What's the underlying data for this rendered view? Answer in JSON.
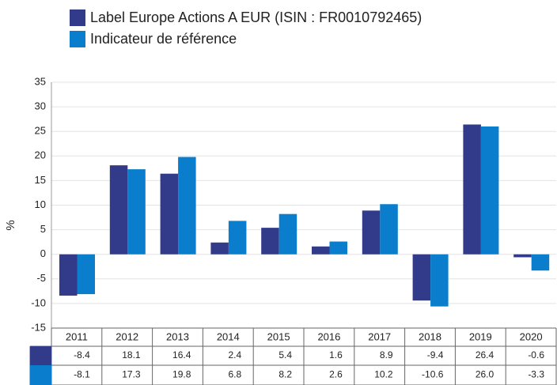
{
  "chart_data": {
    "type": "bar",
    "categories": [
      "2011",
      "2012",
      "2013",
      "2014",
      "2015",
      "2016",
      "2017",
      "2018",
      "2019",
      "2020"
    ],
    "series": [
      {
        "name": "Label Europe Actions A EUR (ISIN : FR0010792465)",
        "color": "#323a8a",
        "values": [
          -8.4,
          18.1,
          16.4,
          2.4,
          5.4,
          1.6,
          8.9,
          -9.4,
          26.4,
          -0.6
        ],
        "value_labels": [
          "-8.4",
          "18.1",
          "16.4",
          "2.4",
          "5.4",
          "1.6",
          "8.9",
          "-9.4",
          "26.4",
          "-0.6"
        ]
      },
      {
        "name": "Indicateur de référence",
        "color": "#0a7dcc",
        "values": [
          -8.1,
          17.3,
          19.8,
          6.8,
          8.2,
          2.6,
          10.2,
          -10.6,
          26.0,
          -3.3
        ],
        "value_labels": [
          "-8.1",
          "17.3",
          "19.8",
          "6.8",
          "8.2",
          "2.6",
          "10.2",
          "-10.6",
          "26.0",
          "-3.3"
        ]
      }
    ],
    "y_label": "%",
    "ylim": [
      -15,
      35
    ],
    "yticks": [
      -15,
      -10,
      -5,
      0,
      5,
      10,
      15,
      20,
      25,
      30,
      35
    ],
    "grid": true
  }
}
